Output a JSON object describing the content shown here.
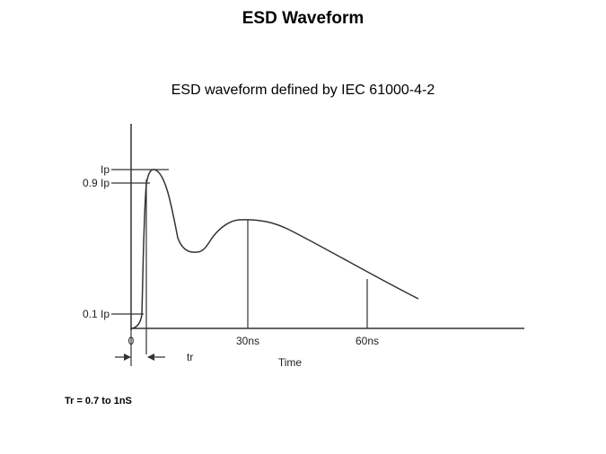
{
  "title": "ESD Waveform",
  "caption": "ESD waveform defined by IEC 61000-4-2",
  "footnote": "Tr = 0.7 to 1nS",
  "diagram": {
    "y_labels": {
      "ip": "Ip",
      "ip90": "0.9 Ip",
      "ip10": "0.1 Ip"
    },
    "x_labels": {
      "origin": "0",
      "t30": "30ns",
      "t60": "60ns",
      "axis": "Time"
    },
    "rise_label": "tr"
  }
}
